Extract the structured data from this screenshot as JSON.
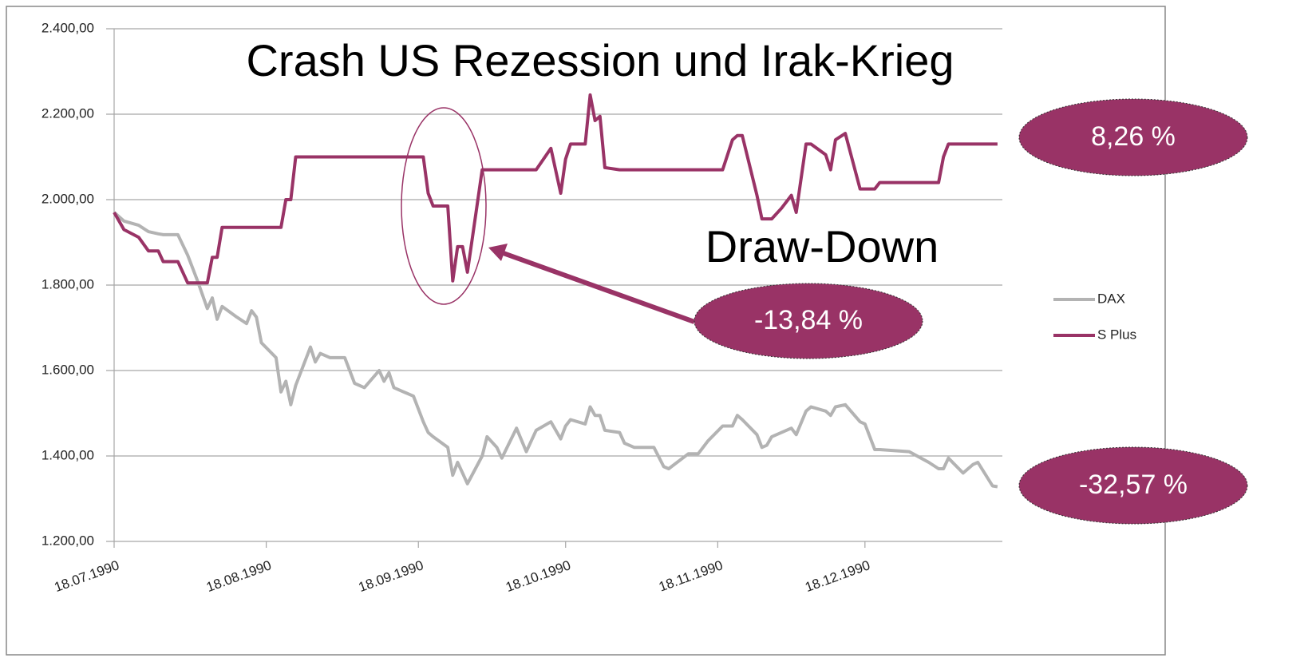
{
  "chart_data": {
    "type": "line",
    "x": [
      "18.07.1990",
      "20.07.1990",
      "23.07.1990",
      "25.07.1990",
      "27.07.1990",
      "28.07.1990",
      "31.07.1990",
      "02.08.1990",
      "04.08.1990",
      "06.08.1990",
      "07.08.1990",
      "08.08.1990",
      "09.08.1990",
      "12.08.1990",
      "14.08.1990",
      "15.08.1990",
      "16.08.1990",
      "17.08.1990",
      "20.08.1990",
      "21.08.1990",
      "22.08.1990",
      "23.08.1990",
      "24.08.1990",
      "27.08.1990",
      "28.08.1990",
      "29.08.1990",
      "31.08.1990",
      "03.09.1990",
      "05.09.1990",
      "07.09.1990",
      "10.09.1990",
      "11.09.1990",
      "12.09.1990",
      "13.09.1990",
      "17.09.1990",
      "19.09.1990",
      "20.09.1990",
      "21.09.1990",
      "24.09.1990",
      "25.09.1990",
      "26.09.1990",
      "27.09.1990",
      "28.09.1990",
      "01.10.1990",
      "02.10.1990",
      "04.10.1990",
      "05.10.1990",
      "08.10.1990",
      "10.10.1990",
      "12.10.1990",
      "15.10.1990",
      "17.10.1990",
      "18.10.1990",
      "19.10.1990",
      "22.10.1990",
      "23.10.1990",
      "24.10.1990",
      "25.10.1990",
      "26.10.1990",
      "29.10.1990",
      "30.10.1990",
      "01.11.1990",
      "05.11.1990",
      "07.11.1990",
      "08.11.1990",
      "12.11.1990",
      "14.11.1990",
      "16.11.1990",
      "19.11.1990",
      "21.11.1990",
      "22.11.1990",
      "23.11.1990",
      "26.11.1990",
      "27.11.1990",
      "28.11.1990",
      "29.11.1990",
      "01.12.1990",
      "03.12.1990",
      "04.12.1990",
      "06.12.1990",
      "07.12.1990",
      "10.12.1990",
      "11.12.1990",
      "12.12.1990",
      "14.12.1990",
      "17.12.1990",
      "18.12.1990",
      "20.12.1990",
      "21.12.1990",
      "27.12.1990",
      "31.12.1990",
      "02.01.1991",
      "03.01.1991",
      "04.01.1991",
      "07.01.1991",
      "09.01.1991",
      "10.01.1991",
      "13.01.1991",
      "14.01.1991"
    ],
    "series": [
      {
        "name": "DAX",
        "color": "#b3b3b3",
        "values": [
          1970,
          1950,
          1940,
          1925,
          1920,
          1918,
          1918,
          1870,
          1810,
          1745,
          1770,
          1720,
          1750,
          1725,
          1710,
          1740,
          1725,
          1665,
          1630,
          1550,
          1575,
          1520,
          1565,
          1655,
          1620,
          1640,
          1630,
          1630,
          1570,
          1560,
          1600,
          1575,
          1595,
          1560,
          1540,
          1480,
          1455,
          1445,
          1420,
          1355,
          1385,
          1360,
          1335,
          1400,
          1445,
          1420,
          1395,
          1465,
          1410,
          1460,
          1480,
          1440,
          1470,
          1485,
          1475,
          1515,
          1495,
          1495,
          1460,
          1455,
          1430,
          1420,
          1420,
          1375,
          1370,
          1405,
          1405,
          1435,
          1470,
          1470,
          1495,
          1485,
          1450,
          1420,
          1425,
          1445,
          1455,
          1465,
          1450,
          1505,
          1515,
          1505,
          1495,
          1515,
          1520,
          1480,
          1475,
          1415,
          1415,
          1410,
          1385,
          1370,
          1370,
          1395,
          1360,
          1380,
          1385,
          1330,
          1328
        ]
      },
      {
        "name": "S Plus",
        "color": "#993366",
        "values": [
          1970,
          1930,
          1912,
          1880,
          1880,
          1855,
          1855,
          1805,
          1805,
          1805,
          1865,
          1865,
          1935,
          1935,
          1935,
          1935,
          1935,
          1935,
          1935,
          1935,
          2000,
          2000,
          2100,
          2100,
          2100,
          2100,
          2100,
          2100,
          2100,
          2100,
          2100,
          2100,
          2100,
          2100,
          2100,
          2100,
          2015,
          1985,
          1985,
          1810,
          1890,
          1890,
          1830,
          2070,
          2070,
          2070,
          2070,
          2070,
          2070,
          2070,
          2120,
          2015,
          2095,
          2130,
          2130,
          2245,
          2185,
          2195,
          2075,
          2070,
          2070,
          2070,
          2070,
          2070,
          2070,
          2070,
          2070,
          2070,
          2070,
          2140,
          2150,
          2150,
          2010,
          1955,
          1955,
          1955,
          1980,
          2010,
          1970,
          2130,
          2130,
          2105,
          2070,
          2140,
          2155,
          2025,
          2025,
          2025,
          2040,
          2040,
          2040,
          2040,
          2100,
          2130,
          2130,
          2130,
          2130,
          2130,
          2130
        ]
      }
    ],
    "xlim": [
      "18.07.1990",
      "15.01.1991"
    ],
    "xticks": [
      "18.07.1990",
      "18.08.1990",
      "18.09.1990",
      "18.10.1990",
      "18.11.1990",
      "18.12.1990"
    ],
    "ylim": [
      1200,
      2400
    ],
    "yticks": [
      {
        "value": 1200,
        "label": "1.200,00"
      },
      {
        "value": 1400,
        "label": "1.400,00"
      },
      {
        "value": 1600,
        "label": "1.600,00"
      },
      {
        "value": 1800,
        "label": "1.800,00"
      },
      {
        "value": 2000,
        "label": "2.000,00"
      },
      {
        "value": 2200,
        "label": "2.200,00"
      },
      {
        "value": 2400,
        "label": "2.400,00"
      }
    ],
    "grid": true,
    "legend": "right",
    "annotations": [
      "Crash US Rezession und Irak-Krieg",
      "Draw-Down",
      "8,26 %",
      "-13,84 %",
      "-32,57 %"
    ]
  }
}
